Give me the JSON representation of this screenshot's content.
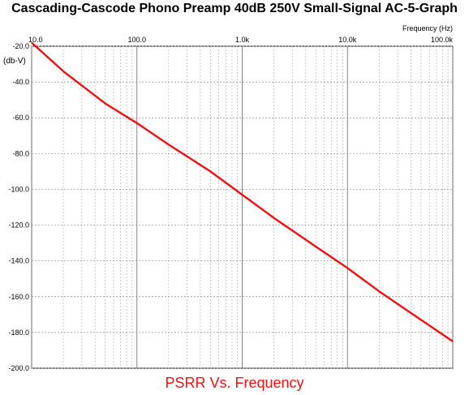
{
  "chart_data": {
    "type": "line",
    "title": "Cascading-Cascode Phono Preamp 40dB 250V Small-Signal AC-5-Graph",
    "xlabel": "Frequency   (Hz)",
    "ylabel": "(db-V)",
    "caption": "PSRR Vs. Frequency",
    "x_scale": "log",
    "xlim": [
      10,
      100000
    ],
    "ylim": [
      -200,
      -20
    ],
    "x_tick_values": [
      10,
      100,
      1000,
      10000,
      100000
    ],
    "x_tick_labels": [
      "10.0",
      "100.0",
      "1.0k",
      "10.0k",
      "100.0k"
    ],
    "y_tick_values": [
      -20,
      -40,
      -60,
      -80,
      -100,
      -120,
      -140,
      -160,
      -180,
      -200
    ],
    "y_tick_labels": [
      "-20.0",
      "-40.0",
      "-60.0",
      "-80.0",
      "-100.0",
      "-120.0",
      "-140.0",
      "-160.0",
      "-180.0",
      "-200.0"
    ],
    "grid": true,
    "series": [
      {
        "color": "#ee1111",
        "x": [
          10,
          20,
          50,
          100,
          200,
          500,
          1000,
          2000,
          5000,
          10000,
          20000,
          50000,
          100000
        ],
        "y": [
          -18,
          -34,
          -52,
          -63,
          -75,
          -90,
          -103,
          -116,
          -132,
          -144,
          -157,
          -173,
          -185
        ]
      }
    ]
  }
}
